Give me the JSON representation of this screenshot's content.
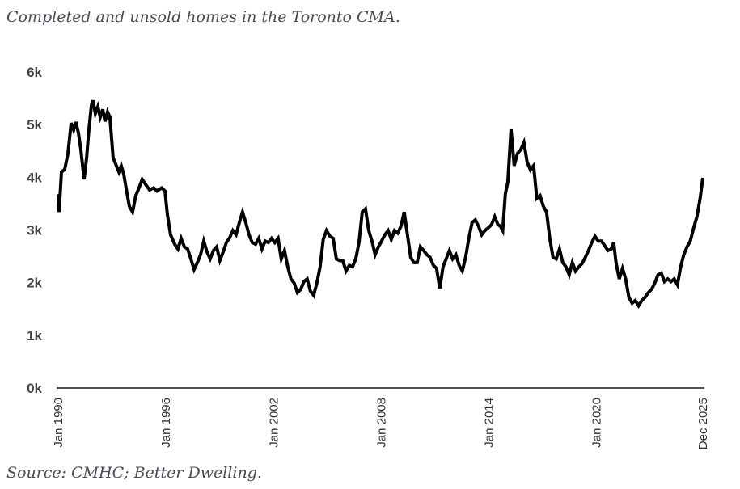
{
  "header": {
    "title": "Completed and unsold homes in the Toronto CMA."
  },
  "footer": {
    "source": "Source: CMHC; Better Dwelling."
  },
  "colors": {
    "line": "#000000",
    "axis": "#555555",
    "text": "#444444"
  },
  "chart_data": {
    "type": "line",
    "title": "Completed and unsold homes in the Toronto CMA.",
    "xlabel": "",
    "ylabel": "",
    "ylim": [
      0,
      6000
    ],
    "xlim": [
      1990.0,
      2025.917
    ],
    "grid": false,
    "legend": "none",
    "y_ticks": [
      {
        "value": 0,
        "label": "0k"
      },
      {
        "value": 1000,
        "label": "1k"
      },
      {
        "value": 2000,
        "label": "2k"
      },
      {
        "value": 3000,
        "label": "3k"
      },
      {
        "value": 4000,
        "label": "4k"
      },
      {
        "value": 5000,
        "label": "5k"
      },
      {
        "value": 6000,
        "label": "6k"
      }
    ],
    "x_ticks": [
      {
        "value": 1990.0,
        "label": "Jan 1990"
      },
      {
        "value": 1996.0,
        "label": "Jan 1996"
      },
      {
        "value": 2002.0,
        "label": "Jan 2002"
      },
      {
        "value": 2008.0,
        "label": "Jan 2008"
      },
      {
        "value": 2014.0,
        "label": "Jan 2014"
      },
      {
        "value": 2020.0,
        "label": "Jan 2020"
      },
      {
        "value": 2025.917,
        "label": "Dec 2025"
      }
    ],
    "series": [
      {
        "name": "Completed and unsold homes",
        "x": [
          1990.0,
          1990.05,
          1990.18,
          1990.36,
          1990.54,
          1990.72,
          1990.86,
          1990.99,
          1991.13,
          1991.26,
          1991.44,
          1991.58,
          1991.71,
          1991.85,
          1991.94,
          1992.07,
          1992.21,
          1992.34,
          1992.48,
          1992.61,
          1992.75,
          1992.88,
          1993.06,
          1993.24,
          1993.38,
          1993.51,
          1993.65,
          1993.78,
          1993.96,
          1994.14,
          1994.32,
          1994.5,
          1994.68,
          1994.86,
          1995.09,
          1995.32,
          1995.5,
          1995.77,
          1995.95,
          1996.08,
          1996.26,
          1996.49,
          1996.67,
          1996.85,
          1997.03,
          1997.21,
          1997.39,
          1997.57,
          1997.75,
          1997.93,
          1998.11,
          1998.29,
          1998.47,
          1998.65,
          1998.83,
          1999.01,
          1999.19,
          1999.37,
          1999.55,
          1999.73,
          1999.91,
          2000.09,
          2000.27,
          2000.45,
          2000.63,
          2000.81,
          2000.99,
          2001.17,
          2001.35,
          2001.53,
          2001.71,
          2001.89,
          2002.07,
          2002.25,
          2002.43,
          2002.61,
          2002.79,
          2002.97,
          2003.15,
          2003.33,
          2003.51,
          2003.69,
          2003.87,
          2004.05,
          2004.23,
          2004.41,
          2004.59,
          2004.77,
          2004.95,
          2005.14,
          2005.32,
          2005.5,
          2005.68,
          2005.86,
          2006.04,
          2006.22,
          2006.4,
          2006.58,
          2006.76,
          2006.94,
          2007.12,
          2007.3,
          2007.48,
          2007.66,
          2007.84,
          2008.02,
          2008.2,
          2008.38,
          2008.56,
          2008.74,
          2008.92,
          2009.1,
          2009.28,
          2009.46,
          2009.64,
          2009.82,
          2010.0,
          2010.18,
          2010.36,
          2010.54,
          2010.72,
          2010.9,
          2011.08,
          2011.26,
          2011.44,
          2011.62,
          2011.8,
          2011.98,
          2012.16,
          2012.34,
          2012.52,
          2012.7,
          2012.88,
          2013.06,
          2013.24,
          2013.42,
          2013.6,
          2013.78,
          2013.96,
          2014.14,
          2014.32,
          2014.5,
          2014.64,
          2014.77,
          2014.91,
          2015.05,
          2015.23,
          2015.41,
          2015.59,
          2015.77,
          2015.95,
          2016.13,
          2016.31,
          2016.49,
          2016.67,
          2016.85,
          2017.03,
          2017.21,
          2017.39,
          2017.57,
          2017.75,
          2017.93,
          2018.11,
          2018.29,
          2018.47,
          2018.65,
          2018.83,
          2019.01,
          2019.19,
          2019.37,
          2019.55,
          2019.73,
          2019.91,
          2020.09,
          2020.27,
          2020.45,
          2020.63,
          2020.81,
          2020.95,
          2021.08,
          2021.26,
          2021.44,
          2021.62,
          2021.8,
          2021.98,
          2022.16,
          2022.34,
          2022.52,
          2022.7,
          2022.88,
          2023.06,
          2023.24,
          2023.42,
          2023.6,
          2023.78,
          2023.96,
          2024.14,
          2024.32,
          2024.5,
          2024.68,
          2024.86,
          2025.04,
          2025.22,
          2025.41,
          2025.59,
          2025.77,
          2025.917
        ],
        "values": [
          3680,
          3340,
          4100,
          4150,
          4450,
          5030,
          4900,
          5050,
          4830,
          4520,
          3960,
          4370,
          4900,
          5370,
          5460,
          5210,
          5340,
          5140,
          5290,
          5060,
          5240,
          5140,
          4370,
          4220,
          4100,
          4220,
          4060,
          3800,
          3450,
          3340,
          3650,
          3800,
          3960,
          3870,
          3760,
          3800,
          3740,
          3800,
          3740,
          3300,
          2910,
          2730,
          2640,
          2840,
          2680,
          2640,
          2450,
          2250,
          2380,
          2530,
          2790,
          2580,
          2450,
          2610,
          2680,
          2420,
          2580,
          2760,
          2850,
          2990,
          2910,
          3140,
          3340,
          3140,
          2910,
          2760,
          2730,
          2840,
          2640,
          2790,
          2760,
          2840,
          2760,
          2840,
          2450,
          2610,
          2300,
          2070,
          1990,
          1810,
          1870,
          2020,
          2070,
          1840,
          1760,
          1990,
          2300,
          2820,
          2990,
          2880,
          2840,
          2450,
          2420,
          2410,
          2220,
          2330,
          2300,
          2450,
          2760,
          3340,
          3400,
          2990,
          2790,
          2530,
          2680,
          2790,
          2910,
          2990,
          2820,
          2990,
          2940,
          3070,
          3340,
          2910,
          2480,
          2380,
          2380,
          2680,
          2610,
          2530,
          2480,
          2330,
          2270,
          1890,
          2300,
          2450,
          2610,
          2450,
          2530,
          2330,
          2220,
          2480,
          2840,
          3140,
          3190,
          3070,
          2910,
          2990,
          3040,
          3100,
          3250,
          3100,
          3070,
          2990,
          3680,
          3910,
          4910,
          4220,
          4450,
          4520,
          4660,
          4290,
          4140,
          4220,
          3600,
          3650,
          3450,
          3340,
          2840,
          2480,
          2450,
          2640,
          2380,
          2300,
          2150,
          2380,
          2220,
          2300,
          2360,
          2480,
          2610,
          2760,
          2880,
          2790,
          2790,
          2700,
          2610,
          2640,
          2760,
          2380,
          2070,
          2270,
          2070,
          1720,
          1610,
          1660,
          1560,
          1660,
          1720,
          1810,
          1870,
          1990,
          2150,
          2180,
          2020,
          2070,
          2020,
          2070,
          1960,
          2300,
          2530,
          2680,
          2790,
          3040,
          3250,
          3600,
          3990
        ]
      }
    ]
  }
}
